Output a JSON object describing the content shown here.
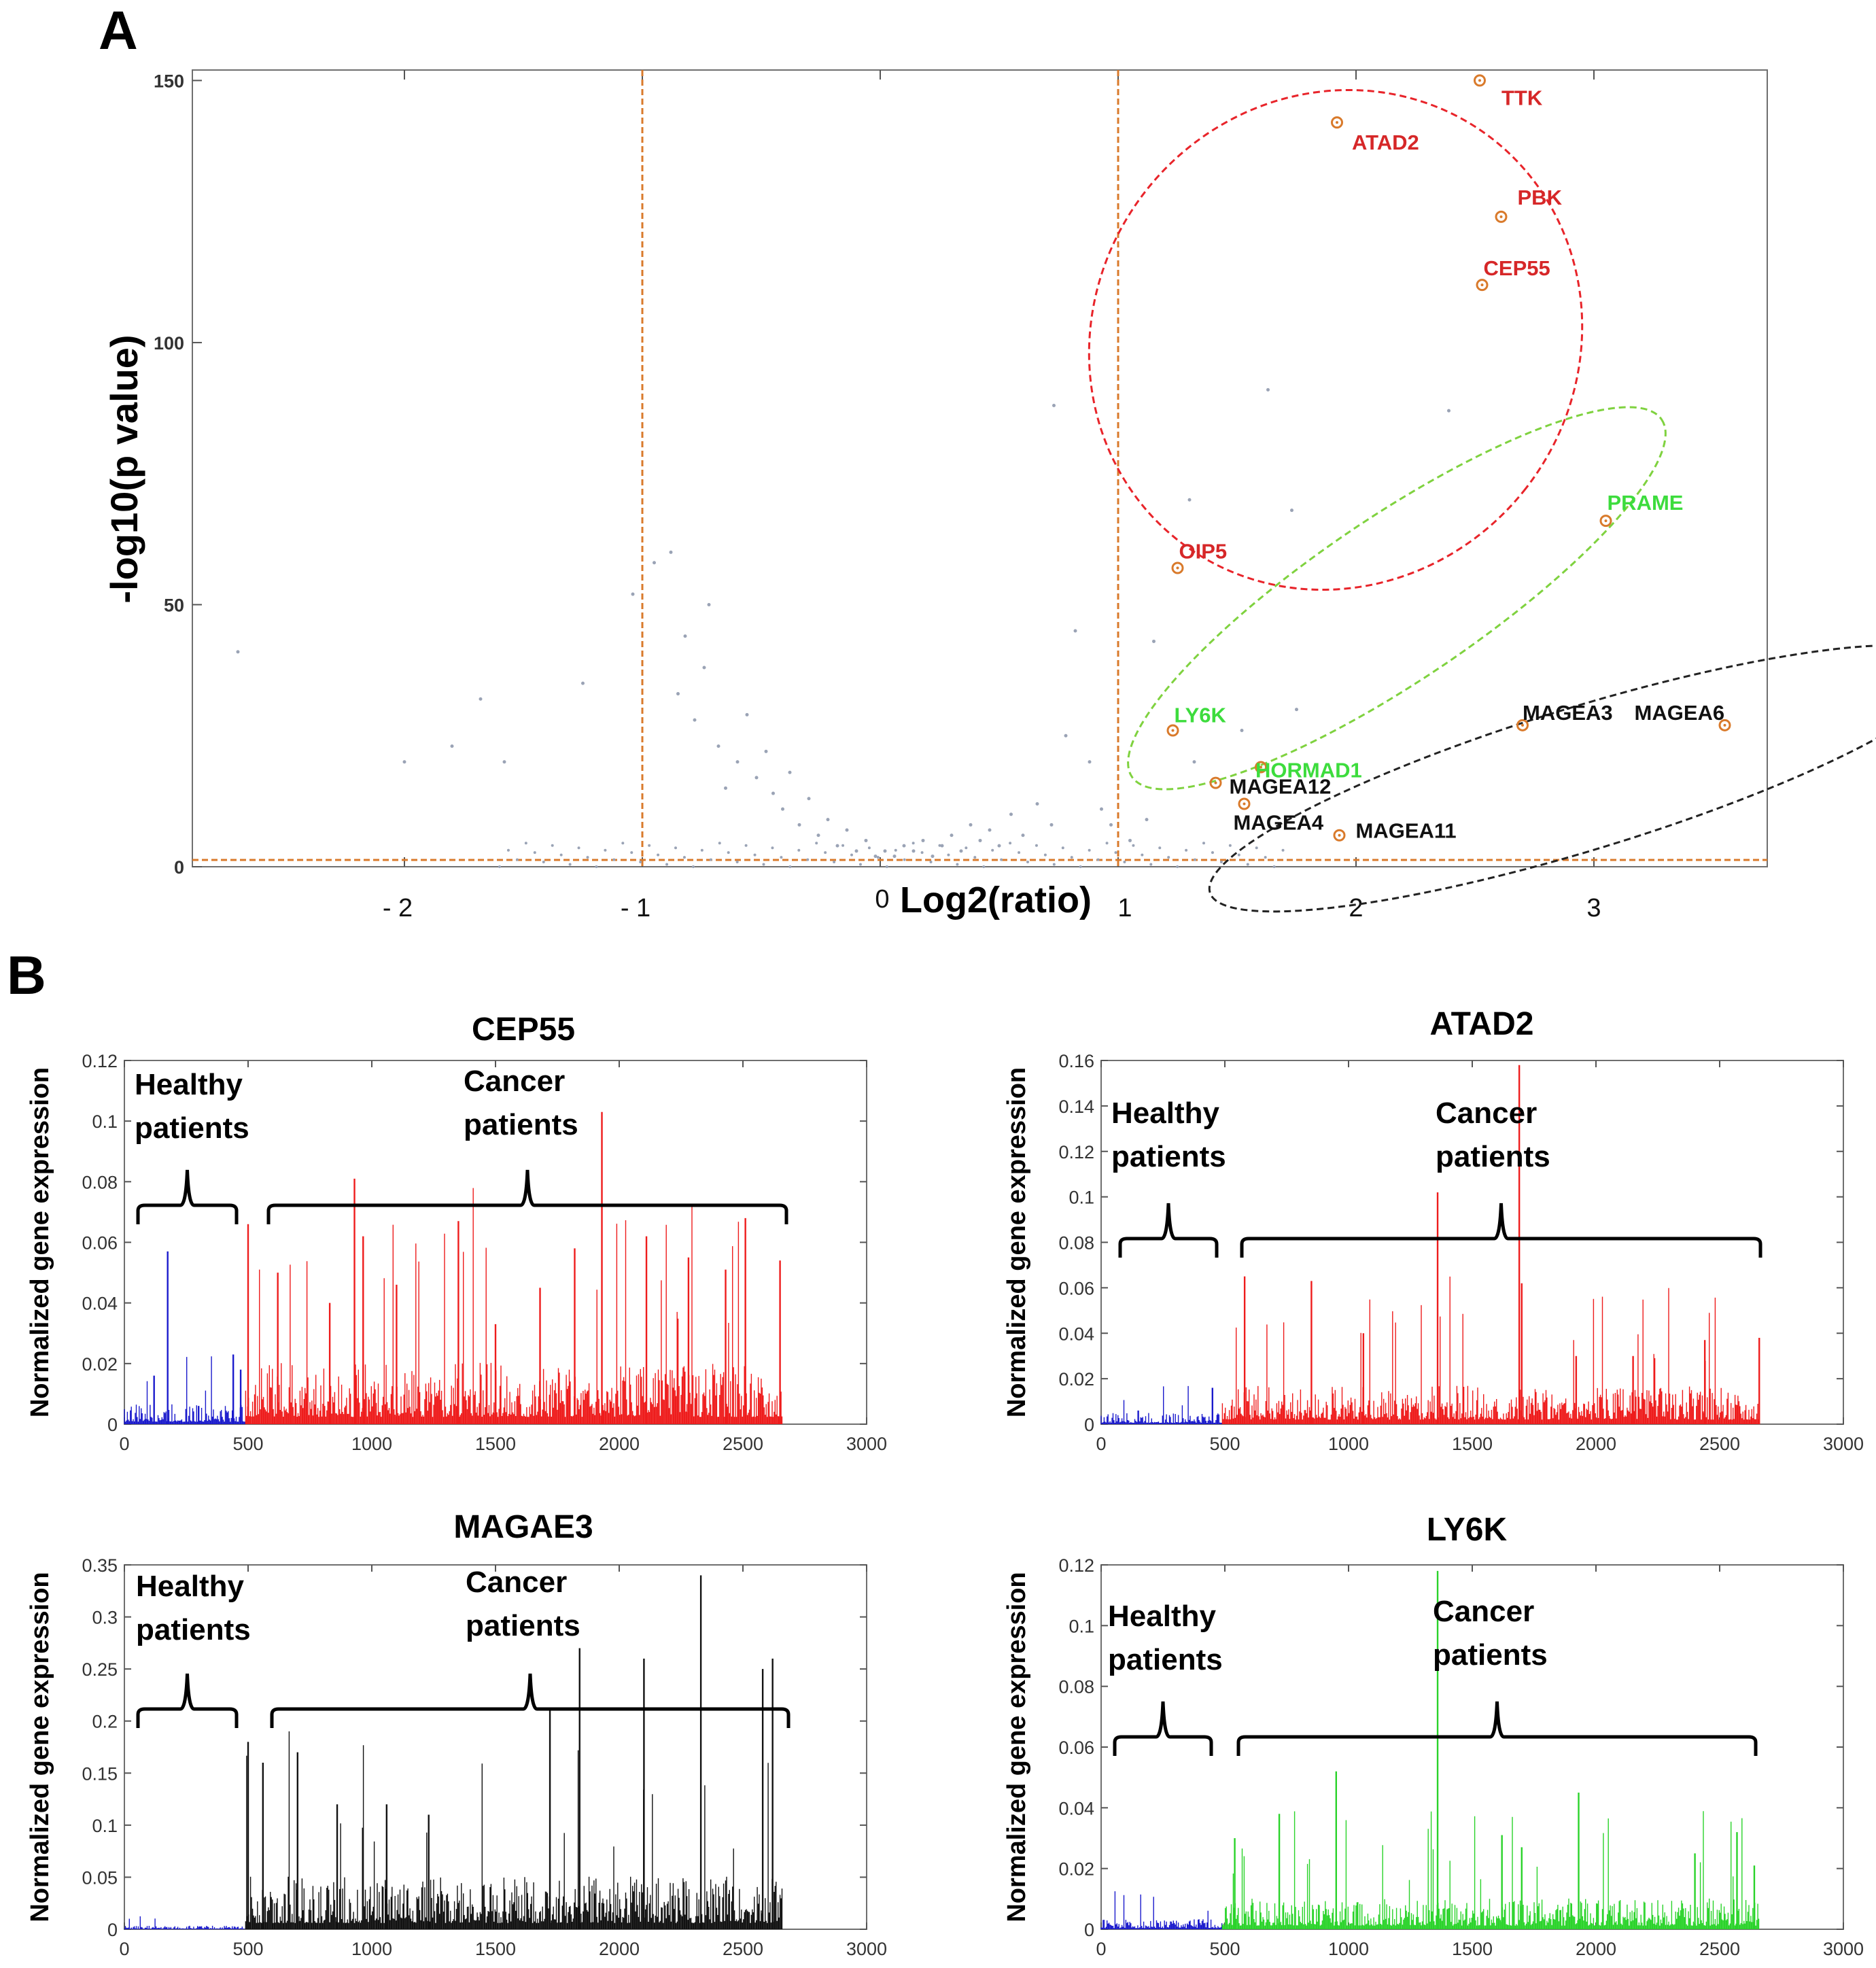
{
  "panel_a_letter": "A",
  "panel_b_letter": "B",
  "chart_data": [
    {
      "type": "scatter",
      "title": "",
      "xlabel": "Log2(ratio)",
      "ylabel": "-log10(p value)",
      "xlim": [
        -2.95,
        3.75
      ],
      "ylim": [
        0,
        152
      ],
      "x_tick_labels": [
        "- 2",
        "- 1",
        "0",
        "1",
        "2",
        "3"
      ],
      "y_tick_labels": [
        "0",
        "50",
        "100",
        "150"
      ],
      "thresholds": {
        "x": [
          -1,
          1
        ],
        "y": 1.3
      },
      "threshold_color": "#d97a2b",
      "highlighted": [
        {
          "name": "TTK",
          "x": 2.52,
          "y": 150,
          "group": "red"
        },
        {
          "name": "ATAD2",
          "x": 1.92,
          "y": 142,
          "group": "red"
        },
        {
          "name": "PBK",
          "x": 2.61,
          "y": 124,
          "group": "red"
        },
        {
          "name": "CEP55",
          "x": 2.53,
          "y": 111,
          "group": "red"
        },
        {
          "name": "OIP5",
          "x": 1.25,
          "y": 57,
          "group": "red"
        },
        {
          "name": "PRAME",
          "x": 3.05,
          "y": 66,
          "group": "green"
        },
        {
          "name": "LY6K",
          "x": 1.23,
          "y": 26,
          "group": "green"
        },
        {
          "name": "HORMAD1",
          "x": 1.6,
          "y": 19,
          "group": "green"
        },
        {
          "name": "MAGEA3",
          "x": 2.7,
          "y": 27,
          "group": "black"
        },
        {
          "name": "MAGEA6",
          "x": 3.55,
          "y": 27,
          "group": "black"
        },
        {
          "name": "MAGEA12",
          "x": 1.41,
          "y": 16,
          "group": "black"
        },
        {
          "name": "MAGEA4",
          "x": 1.53,
          "y": 12,
          "group": "black"
        },
        {
          "name": "MAGEA11",
          "x": 1.93,
          "y": 6,
          "group": "black"
        }
      ],
      "unlabeled_points": [
        [
          -2.7,
          41
        ],
        [
          -2.0,
          20
        ],
        [
          -1.8,
          23
        ],
        [
          -1.68,
          32
        ],
        [
          -1.58,
          20
        ],
        [
          -1.25,
          35
        ],
        [
          -1.04,
          52
        ],
        [
          -0.95,
          58
        ],
        [
          -0.88,
          60
        ],
        [
          -0.85,
          33
        ],
        [
          -0.82,
          44
        ],
        [
          -0.78,
          28
        ],
        [
          -0.74,
          38
        ],
        [
          -0.72,
          50
        ],
        [
          -0.68,
          23
        ],
        [
          -0.65,
          15
        ],
        [
          -0.6,
          20
        ],
        [
          -0.56,
          29
        ],
        [
          -0.52,
          17
        ],
        [
          -0.48,
          22
        ],
        [
          -0.45,
          14
        ],
        [
          -0.41,
          11
        ],
        [
          -0.38,
          18
        ],
        [
          -0.34,
          8
        ],
        [
          -0.3,
          13
        ],
        [
          -0.26,
          6
        ],
        [
          -0.22,
          9
        ],
        [
          -0.18,
          4
        ],
        [
          -0.14,
          7
        ],
        [
          -0.1,
          3
        ],
        [
          -0.06,
          5
        ],
        [
          -0.02,
          2
        ],
        [
          0.02,
          3
        ],
        [
          0.06,
          2
        ],
        [
          0.1,
          4
        ],
        [
          0.14,
          3
        ],
        [
          0.18,
          5
        ],
        [
          0.22,
          2
        ],
        [
          0.26,
          4
        ],
        [
          0.3,
          6
        ],
        [
          0.34,
          3
        ],
        [
          0.38,
          8
        ],
        [
          0.42,
          5
        ],
        [
          0.46,
          7
        ],
        [
          0.5,
          4
        ],
        [
          0.55,
          10
        ],
        [
          0.6,
          6
        ],
        [
          0.66,
          12
        ],
        [
          0.72,
          8
        ],
        [
          0.78,
          25
        ],
        [
          0.82,
          45
        ],
        [
          0.88,
          20
        ],
        [
          0.93,
          11
        ],
        [
          0.73,
          88
        ],
        [
          0.97,
          8
        ],
        [
          1.05,
          5
        ],
        [
          1.12,
          9
        ],
        [
          1.15,
          43
        ],
        [
          1.3,
          70
        ],
        [
          1.63,
          91
        ],
        [
          1.73,
          68
        ],
        [
          2.39,
          87
        ],
        [
          1.52,
          26
        ],
        [
          1.75,
          30
        ],
        [
          1.32,
          20
        ]
      ]
    },
    {
      "type": "bar",
      "title": "CEP55",
      "xlabel": "",
      "ylabel": "Normalized gene expression",
      "xlim": [
        0,
        3000
      ],
      "ylim": [
        0,
        0.12
      ],
      "x_tick_labels": [
        "0",
        "500",
        "1000",
        "1500",
        "2000",
        "2500",
        "3000"
      ],
      "y_tick_labels": [
        "0",
        "0.02",
        "0.04",
        "0.06",
        "0.08",
        "0.1",
        "0.12"
      ],
      "series": [
        {
          "name": "Healthy patients",
          "color": "#1a1acc",
          "x_range": [
            0,
            490
          ],
          "baseline": 0.004,
          "spikes": [
            [
              120,
              0.016
            ],
            [
              175,
              0.057
            ],
            [
              300,
              0.006
            ],
            [
              440,
              0.023
            ],
            [
              470,
              0.018
            ]
          ]
        },
        {
          "name": "Cancer patients",
          "color": "#ee1c1c",
          "x_range": [
            490,
            2660
          ],
          "baseline": 0.012,
          "spikes": [
            [
              500,
              0.066
            ],
            [
              620,
              0.05
            ],
            [
              830,
              0.04
            ],
            [
              930,
              0.081
            ],
            [
              965,
              0.062
            ],
            [
              1100,
              0.046
            ],
            [
              1350,
              0.067
            ],
            [
              1500,
              0.033
            ],
            [
              1680,
              0.045
            ],
            [
              1820,
              0.058
            ],
            [
              1930,
              0.103
            ],
            [
              2110,
              0.062
            ],
            [
              2280,
              0.055
            ],
            [
              2430,
              0.051
            ],
            [
              2510,
              0.068
            ],
            [
              2650,
              0.054
            ]
          ]
        }
      ]
    },
    {
      "type": "bar",
      "title": "ATAD2",
      "xlabel": "",
      "ylabel": "Normalized gene expression",
      "xlim": [
        0,
        3000
      ],
      "ylim": [
        0,
        0.16
      ],
      "x_tick_labels": [
        "0",
        "500",
        "1000",
        "1500",
        "2000",
        "2500",
        "3000"
      ],
      "y_tick_labels": [
        "0",
        "0.02",
        "0.04",
        "0.06",
        "0.08",
        "0.1",
        "0.12",
        "0.14",
        "0.16"
      ],
      "series": [
        {
          "name": "Healthy patients",
          "color": "#1a1acc",
          "x_range": [
            0,
            490
          ],
          "baseline": 0.003,
          "spikes": [
            [
              150,
              0.006
            ],
            [
              450,
              0.016
            ]
          ]
        },
        {
          "name": "Cancer patients",
          "color": "#ee1c1c",
          "x_range": [
            490,
            2660
          ],
          "baseline": 0.01,
          "spikes": [
            [
              580,
              0.065
            ],
            [
              850,
              0.063
            ],
            [
              1060,
              0.04
            ],
            [
              1360,
              0.102
            ],
            [
              1690,
              0.158
            ],
            [
              1700,
              0.062
            ],
            [
              1920,
              0.03
            ],
            [
              2150,
              0.03
            ],
            [
              2440,
              0.037
            ],
            [
              2660,
              0.038
            ]
          ]
        }
      ]
    },
    {
      "type": "bar",
      "title": "MAGAE3",
      "xlabel": "",
      "ylabel": "Normalized gene expression",
      "xlim": [
        0,
        3000
      ],
      "ylim": [
        0,
        0.35
      ],
      "x_tick_labels": [
        "0",
        "500",
        "1000",
        "1500",
        "2000",
        "2500",
        "3000"
      ],
      "y_tick_labels": [
        "0",
        "0.05",
        "0.1",
        "0.15",
        "0.2",
        "0.25",
        "0.3",
        "0.35"
      ],
      "series": [
        {
          "name": "Healthy patients",
          "color": "#1a1acc",
          "x_range": [
            0,
            490
          ],
          "baseline": 0.002,
          "spikes": []
        },
        {
          "name": "Cancer patients",
          "color": "#111111",
          "x_range": [
            490,
            2660
          ],
          "baseline": 0.03,
          "spikes": [
            [
              500,
              0.18
            ],
            [
              560,
              0.16
            ],
            [
              700,
              0.17
            ],
            [
              860,
              0.12
            ],
            [
              1060,
              0.12
            ],
            [
              1230,
              0.11
            ],
            [
              1720,
              0.21
            ],
            [
              1840,
              0.27
            ],
            [
              2100,
              0.26
            ],
            [
              2330,
              0.34
            ],
            [
              2580,
              0.25
            ],
            [
              2620,
              0.26
            ]
          ]
        }
      ]
    },
    {
      "type": "bar",
      "title": "LY6K",
      "xlabel": "",
      "ylabel": "Normalized gene expression",
      "xlim": [
        0,
        3000
      ],
      "ylim": [
        0,
        0.12
      ],
      "x_tick_labels": [
        "0",
        "500",
        "1000",
        "1500",
        "2000",
        "2500",
        "3000"
      ],
      "y_tick_labels": [
        "0",
        "0.02",
        "0.04",
        "0.06",
        "0.08",
        "0.1",
        "0.12"
      ],
      "series": [
        {
          "name": "Healthy patients",
          "color": "#1a1acc",
          "x_range": [
            0,
            490
          ],
          "baseline": 0.002,
          "spikes": []
        },
        {
          "name": "Cancer patients",
          "color": "#2ad32a",
          "x_range": [
            490,
            2660
          ],
          "baseline": 0.006,
          "spikes": [
            [
              540,
              0.03
            ],
            [
              720,
              0.038
            ],
            [
              950,
              0.052
            ],
            [
              1360,
              0.118
            ],
            [
              1620,
              0.031
            ],
            [
              1700,
              0.027
            ],
            [
              1930,
              0.045
            ],
            [
              2400,
              0.025
            ],
            [
              2570,
              0.032
            ],
            [
              2640,
              0.021
            ]
          ]
        }
      ]
    }
  ],
  "group_labels": {
    "healthy": [
      "Healthy",
      "patients"
    ],
    "cancer": [
      "Cancer",
      "patients"
    ]
  },
  "colors": {
    "red_group": "#d62728",
    "green_group": "#3ddc3d",
    "black_group": "#111111",
    "marker": "#d97a2b",
    "minor_points": "#9aa3b5"
  }
}
